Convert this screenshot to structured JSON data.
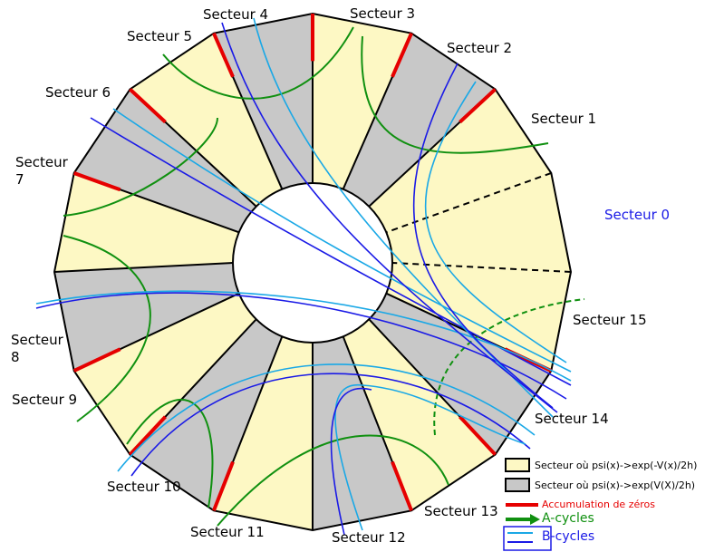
{
  "sectors": [
    "Secteur 0",
    "Secteur 1",
    "Secteur 2",
    "Secteur 3",
    "Secteur 4",
    "Secteur 5",
    "Secteur 6",
    "Secteur\n7",
    "Secteur\n8",
    "Secteur 9",
    "Secteur 10",
    "Secteur 11",
    "Secteur 12",
    "Secteur 13",
    "Secteur 14",
    "Secteur 15"
  ],
  "legend": {
    "yellow": "Secteur où psi(x)->exp(-V(x)/2h)",
    "gray": "Secteur où psi(x)->exp(V(X)/2h)",
    "zeros": "Accumulation de zéros",
    "a_cycles": "A-cycles",
    "b_cycles": "B-cycles"
  }
}
